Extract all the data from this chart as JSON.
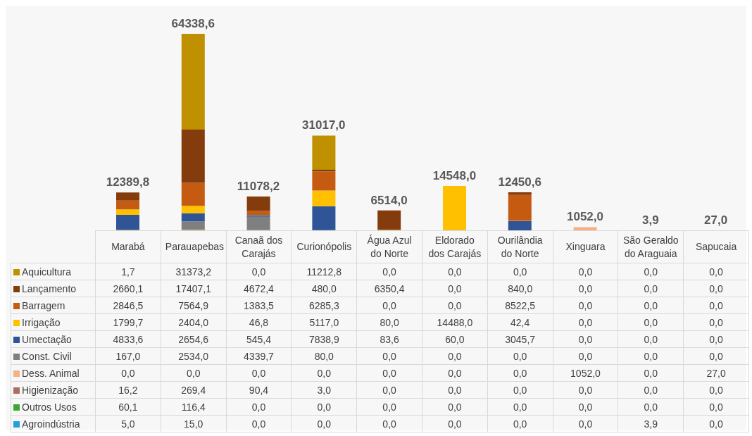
{
  "chart_data": {
    "type": "bar",
    "stacked": true,
    "legend": "bottom",
    "categories": [
      "Marabá",
      "Parauapebas",
      "Canaã dos Carajás",
      "Curionópolis",
      "Água Azul do Norte",
      "Eldorado dos Carajás",
      "Ourilândia do Norte",
      "Xinguara",
      "São Geraldo do Araguaia",
      "Sapucaia"
    ],
    "totals": [
      "12389,8",
      "64338,6",
      "11078,2",
      "31017,0",
      "6514,0",
      "14548,0",
      "12450,6",
      "1052,0",
      "3,9",
      "27,0"
    ],
    "series": [
      {
        "name": "Agroindústria",
        "color": "#23a0da",
        "values": [
          5.0,
          15.0,
          0.0,
          0.0,
          0.0,
          0.0,
          0.0,
          0.0,
          3.9,
          0.0
        ],
        "value_labels": [
          "5,0",
          "15,0",
          "0,0",
          "0,0",
          "0,0",
          "0,0",
          "0,0",
          "0,0",
          "3,9",
          "0,0"
        ]
      },
      {
        "name": "Outros Usos",
        "color": "#3fa535",
        "values": [
          60.1,
          116.4,
          0.0,
          0.0,
          0.0,
          0.0,
          0.0,
          0.0,
          0.0,
          0.0
        ],
        "value_labels": [
          "60,1",
          "116,4",
          "0,0",
          "0,0",
          "0,0",
          "0,0",
          "0,0",
          "0,0",
          "0,0",
          "0,0"
        ]
      },
      {
        "name": "Higienização",
        "color": "#a6705e",
        "values": [
          16.2,
          269.4,
          90.4,
          3.0,
          0.0,
          0.0,
          0.0,
          0.0,
          0.0,
          0.0
        ],
        "value_labels": [
          "16,2",
          "269,4",
          "90,4",
          "3,0",
          "0,0",
          "0,0",
          "0,0",
          "0,0",
          "0,0",
          "0,0"
        ]
      },
      {
        "name": "Dess. Animal",
        "color": "#f4b183",
        "values": [
          0.0,
          0.0,
          0.0,
          0.0,
          0.0,
          0.0,
          0.0,
          1052.0,
          0.0,
          27.0
        ],
        "value_labels": [
          "0,0",
          "0,0",
          "0,0",
          "0,0",
          "0,0",
          "0,0",
          "0,0",
          "1052,0",
          "0,0",
          "27,0"
        ]
      },
      {
        "name": "Const. Civil",
        "color": "#7f7f7f",
        "values": [
          167.0,
          2534.0,
          4339.7,
          80.0,
          0.0,
          0.0,
          0.0,
          0.0,
          0.0,
          0.0
        ],
        "value_labels": [
          "167,0",
          "2534,0",
          "4339,7",
          "80,0",
          "0,0",
          "0,0",
          "0,0",
          "0,0",
          "0,0",
          "0,0"
        ]
      },
      {
        "name": "Umectação",
        "color": "#2f5597",
        "values": [
          4833.6,
          2654.6,
          545.4,
          7838.9,
          83.6,
          60.0,
          3045.7,
          0.0,
          0.0,
          0.0
        ],
        "value_labels": [
          "4833,6",
          "2654,6",
          "545,4",
          "7838,9",
          "83,6",
          "60,0",
          "3045,7",
          "0,0",
          "0,0",
          "0,0"
        ]
      },
      {
        "name": "Irrigação",
        "color": "#ffc000",
        "values": [
          1799.7,
          2404.0,
          46.8,
          5117.0,
          80.0,
          14488.0,
          42.4,
          0.0,
          0.0,
          0.0
        ],
        "value_labels": [
          "1799,7",
          "2404,0",
          "46,8",
          "5117,0",
          "80,0",
          "14488,0",
          "42,4",
          "0,0",
          "0,0",
          "0,0"
        ]
      },
      {
        "name": "Barragem",
        "color": "#c55a11",
        "values": [
          2846.5,
          7564.9,
          1383.5,
          6285.3,
          0.0,
          0.0,
          8522.5,
          0.0,
          0.0,
          0.0
        ],
        "value_labels": [
          "2846,5",
          "7564,9",
          "1383,5",
          "6285,3",
          "0,0",
          "0,0",
          "8522,5",
          "0,0",
          "0,0",
          "0,0"
        ]
      },
      {
        "name": "Lançamento",
        "color": "#843c0c",
        "values": [
          2660.1,
          17407.1,
          4672.4,
          480.0,
          6350.4,
          0.0,
          840.0,
          0.0,
          0.0,
          0.0
        ],
        "value_labels": [
          "2660,1",
          "17407,1",
          "4672,4",
          "480,0",
          "6350,4",
          "0,0",
          "840,0",
          "0,0",
          "0,0",
          "0,0"
        ]
      },
      {
        "name": "Aquicultura",
        "color": "#bf9000",
        "values": [
          1.7,
          31373.2,
          0.0,
          11212.8,
          0.0,
          0.0,
          0.0,
          0.0,
          0.0,
          0.0
        ],
        "value_labels": [
          "1,7",
          "31373,2",
          "0,0",
          "11212,8",
          "0,0",
          "0,0",
          "0,0",
          "0,0",
          "0,0",
          "0,0"
        ]
      }
    ]
  }
}
